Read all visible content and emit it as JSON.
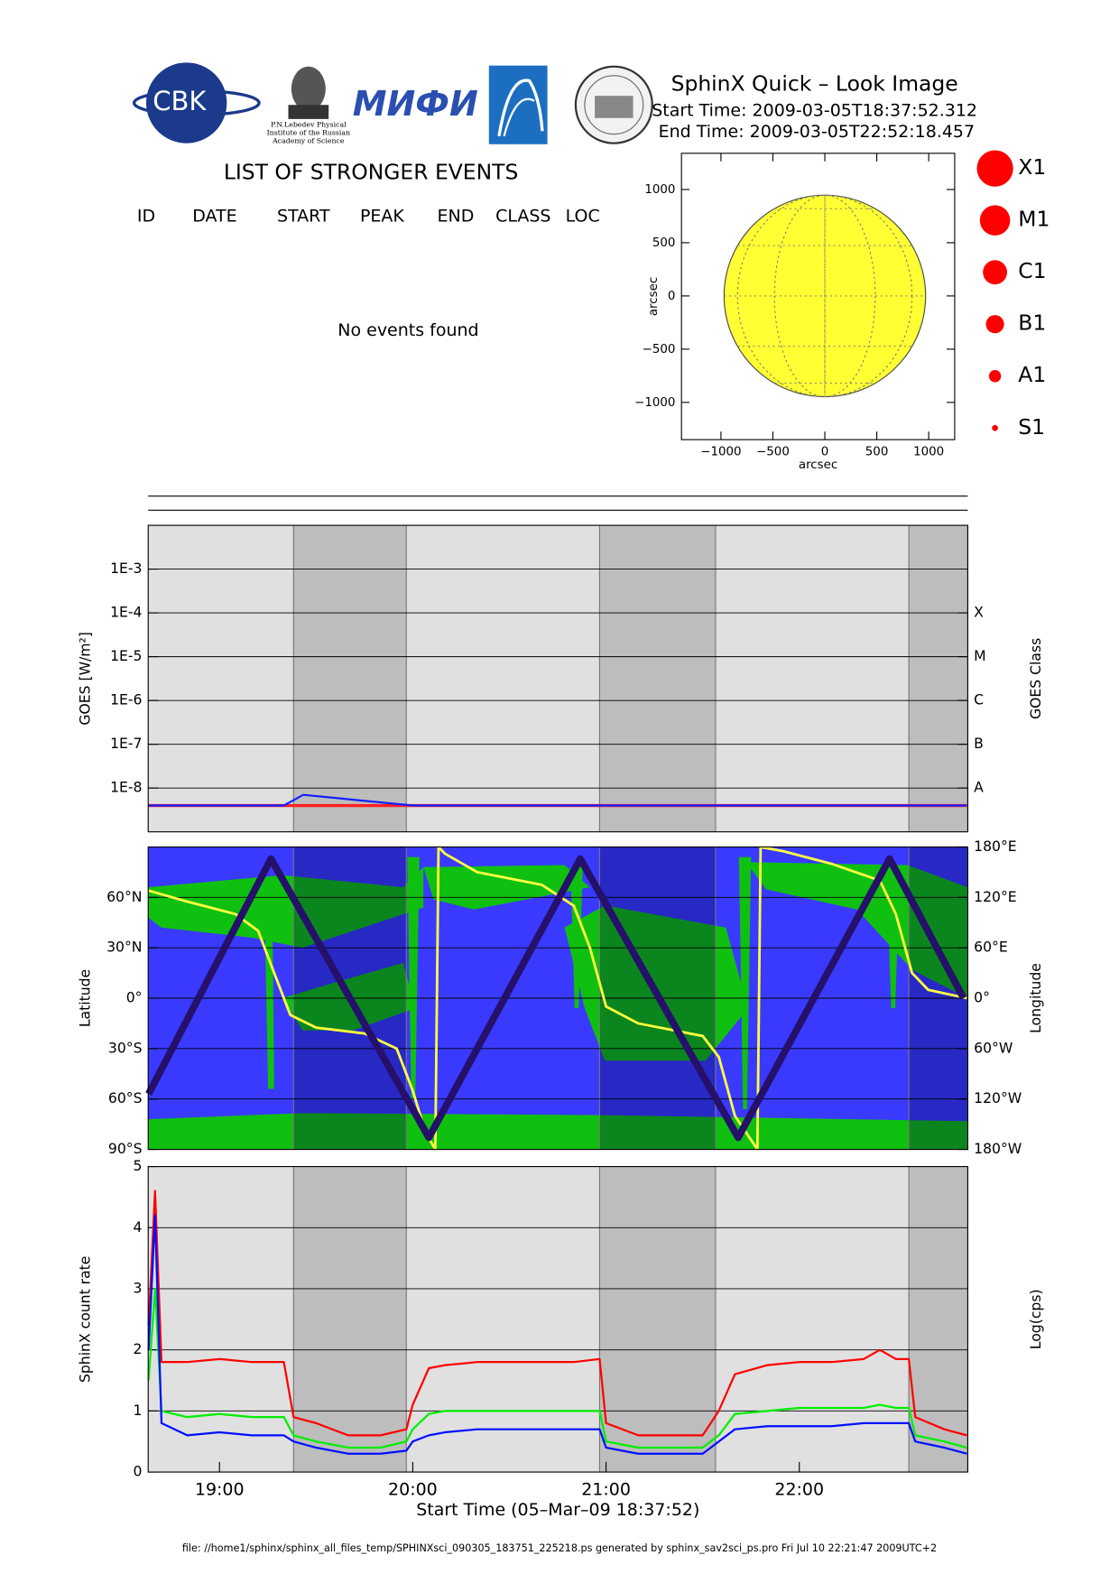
{
  "header": {
    "title": "SphinX Quick – Look Image",
    "start_time": "Start Time: 2009-03-05T18:37:52.312",
    "end_time": "End Time: 2009-03-05T22:52:18.457",
    "logos": {
      "cbk": "CBK",
      "mephi": "МИФИ",
      "lebedev": [
        "P.N.Lebedev Physical",
        "Institute of the Russian",
        "Academy of Science"
      ]
    }
  },
  "events": {
    "title": "LIST OF STRONGER EVENTS",
    "columns": [
      "ID",
      "DATE",
      "START",
      "PEAK",
      "END",
      "CLASS",
      "LOC"
    ],
    "message": "No events found"
  },
  "night_intervals": [
    [
      "19:23",
      "19:58"
    ],
    [
      "20:58",
      "21:34"
    ],
    [
      "22:34",
      "22:52:18"
    ]
  ],
  "chart_data": [
    {
      "type": "disk",
      "xlabel": "arcsec",
      "ylabel": "arcsec",
      "xlim": [
        -1380,
        1250
      ],
      "ylim": [
        -1350,
        1340
      ],
      "xticks": [
        {
          "value": -1000,
          "label": "−1000"
        },
        {
          "value": -500,
          "label": "−500"
        },
        0,
        500,
        1000
      ],
      "yticks": [
        {
          "value": -1000,
          "label": "−1000"
        },
        {
          "value": -500,
          "label": "−500"
        },
        0,
        500,
        1000
      ],
      "sun_radius": 970,
      "color": "#ffff33",
      "legend": [
        {
          "label": "X1",
          "size": 18
        },
        {
          "label": "M1",
          "size": 15
        },
        {
          "label": "C1",
          "size": 12
        },
        {
          "label": "B1",
          "size": 9
        },
        {
          "label": "A1",
          "size": 6
        },
        {
          "label": "S1",
          "size": 3
        }
      ],
      "legend_color": "#ff0000"
    },
    {
      "type": "line",
      "ylabel": "GOES [W/m²]",
      "y2label": "GOES Class",
      "log": true,
      "grid": true,
      "background": "gray",
      "xlim": [
        "18:37:52",
        "22:52:18"
      ],
      "ylim": [
        1e-09,
        0.01
      ],
      "yticks": [
        {
          "value": 0.001,
          "label": "1E-3"
        },
        {
          "value": 0.0001,
          "label": "1E-4"
        },
        {
          "value": 1e-05,
          "label": "1E-5"
        },
        {
          "value": 1e-06,
          "label": "1E-6"
        },
        {
          "value": 1e-07,
          "label": "1E-7"
        },
        {
          "value": 1e-08,
          "label": "1E-8"
        }
      ],
      "y2ticks": [
        {
          "value": 0.0001,
          "label": "X"
        },
        {
          "value": 1e-05,
          "label": "M"
        },
        {
          "value": 1e-06,
          "label": "C"
        },
        {
          "value": 1e-07,
          "label": "B"
        },
        {
          "value": 1e-08,
          "label": "A"
        }
      ],
      "series": [
        {
          "color": "#ff2020",
          "width": 3,
          "x": [
            "18:38",
            "19:00",
            "19:20",
            "19:26",
            "20:00",
            "20:30",
            "21:00",
            "21:30",
            "22:00",
            "22:30",
            "22:52"
          ],
          "values": [
            4e-09,
            4e-09,
            4e-09,
            4e-09,
            4e-09,
            4e-09,
            4e-09,
            4e-09,
            4e-09,
            4e-09,
            4e-09
          ]
        },
        {
          "color": "#1020ff",
          "width": 2,
          "x": [
            "18:38",
            "19:00",
            "19:20",
            "19:26",
            "20:00",
            "20:30",
            "21:00",
            "21:30",
            "22:00",
            "22:30",
            "22:52"
          ],
          "values": [
            4e-09,
            4e-09,
            4e-09,
            7e-09,
            4e-09,
            4e-09,
            4e-09,
            4e-09,
            4e-09,
            4e-09,
            4e-09
          ]
        }
      ]
    },
    {
      "type": "line",
      "ylabel": "Latitude",
      "y2label": "Longitude",
      "grid": true,
      "background": "map",
      "xlim": [
        "18:37:52",
        "22:52:18"
      ],
      "ylim": [
        -90,
        90
      ],
      "y2lim": [
        -180,
        180
      ],
      "yticks": [
        {
          "value": -90,
          "label": "90°S"
        },
        {
          "value": -60,
          "label": "60°S"
        },
        {
          "value": -30,
          "label": "30°S"
        },
        {
          "value": 0,
          "label": "0°"
        },
        {
          "value": 30,
          "label": "30°N"
        },
        {
          "value": 60,
          "label": "60°N"
        }
      ],
      "y2ticks": [
        {
          "value": -180,
          "label": "180°W"
        },
        {
          "value": -120,
          "label": "120°W"
        },
        {
          "value": -60,
          "label": "60°W"
        },
        {
          "value": 0,
          "label": "0°"
        },
        {
          "value": 60,
          "label": "60°E"
        },
        {
          "value": 120,
          "label": "120°E"
        },
        {
          "value": 180,
          "label": "180°E"
        }
      ],
      "series": [
        {
          "color": "#ffff40",
          "width": 2.5,
          "axis": "y2",
          "x": [
            "18:38",
            "18:50",
            "19:05",
            "19:12",
            "19:17",
            "19:22",
            "19:30",
            "19:45",
            "19:55",
            "20:00",
            "20:04",
            "20:07",
            "20:08",
            "20:10",
            "20:20",
            "20:40",
            "20:50",
            "20:55",
            "21:00",
            "21:10",
            "21:30",
            "21:35",
            "21:40",
            "21:47",
            "21:48",
            "21:55",
            "22:10",
            "22:25",
            "22:30",
            "22:35",
            "22:40",
            "22:52"
          ],
          "values": [
            128,
            115,
            100,
            80,
            30,
            -20,
            -35,
            -42,
            -60,
            -110,
            -160,
            -180,
            180,
            172,
            150,
            135,
            110,
            60,
            -10,
            -30,
            -45,
            -70,
            -140,
            -180,
            180,
            175,
            160,
            140,
            100,
            30,
            10,
            0
          ]
        },
        {
          "color": "#25106a",
          "width": 7,
          "x": [
            "18:38",
            "19:16",
            "20:05",
            "20:52",
            "21:41",
            "22:28",
            "22:51"
          ],
          "values": [
            -57,
            83,
            -83,
            83,
            -83,
            83,
            0
          ]
        }
      ]
    },
    {
      "type": "line",
      "ylabel": "SphinX count rate",
      "y2label": "Log(cps)",
      "xlabel": "Start Time (05–Mar–09 18:37:52)",
      "grid": true,
      "background": "gray",
      "xlim": [
        "18:37:52",
        "22:52:18"
      ],
      "xticks": [
        "19:00",
        "20:00",
        "21:00",
        "22:00"
      ],
      "ylim": [
        0,
        5
      ],
      "yticks": [
        0,
        1,
        2,
        3,
        4,
        5
      ],
      "x": [
        "18:38",
        "18:40",
        "18:42",
        "18:50",
        "19:00",
        "19:10",
        "19:20",
        "19:23",
        "19:30",
        "19:40",
        "19:50",
        "19:58",
        "20:00",
        "20:05",
        "20:10",
        "20:20",
        "20:30",
        "20:40",
        "20:50",
        "20:58",
        "21:00",
        "21:10",
        "21:20",
        "21:30",
        "21:35",
        "21:40",
        "21:50",
        "22:00",
        "22:10",
        "22:20",
        "22:25",
        "22:30",
        "22:34",
        "22:36",
        "22:45",
        "22:52"
      ],
      "series": [
        {
          "color": "#ff0000",
          "width": 2,
          "values": [
            2.4,
            4.6,
            1.8,
            1.8,
            1.85,
            1.8,
            1.8,
            0.9,
            0.8,
            0.6,
            0.6,
            0.7,
            1.1,
            1.7,
            1.75,
            1.8,
            1.8,
            1.8,
            1.8,
            1.85,
            0.8,
            0.6,
            0.6,
            0.6,
            1.0,
            1.6,
            1.75,
            1.8,
            1.8,
            1.85,
            2.0,
            1.85,
            1.85,
            0.9,
            0.7,
            0.6
          ]
        },
        {
          "color": "#00ee00",
          "width": 2,
          "values": [
            1.5,
            3.0,
            1.0,
            0.9,
            0.95,
            0.9,
            0.9,
            0.6,
            0.5,
            0.4,
            0.4,
            0.5,
            0.7,
            0.95,
            1.0,
            1.0,
            1.0,
            1.0,
            1.0,
            1.0,
            0.5,
            0.4,
            0.4,
            0.4,
            0.6,
            0.95,
            1.0,
            1.05,
            1.05,
            1.05,
            1.1,
            1.05,
            1.05,
            0.6,
            0.5,
            0.4
          ]
        },
        {
          "color": "#0010ff",
          "width": 2,
          "values": [
            2.0,
            4.2,
            0.8,
            0.6,
            0.65,
            0.6,
            0.6,
            0.5,
            0.4,
            0.3,
            0.3,
            0.35,
            0.5,
            0.6,
            0.65,
            0.7,
            0.7,
            0.7,
            0.7,
            0.7,
            0.4,
            0.3,
            0.3,
            0.3,
            0.5,
            0.7,
            0.75,
            0.75,
            0.75,
            0.8,
            0.8,
            0.8,
            0.8,
            0.5,
            0.4,
            0.3
          ]
        }
      ]
    }
  ],
  "footer": "file: //home1/sphinx/sphinx_all_files_temp/SPHINXsci_090305_183751_225218.ps generated by sphinx_sav2sci_ps.pro Fri Jul 10 22:21:47 2009UTC+2"
}
